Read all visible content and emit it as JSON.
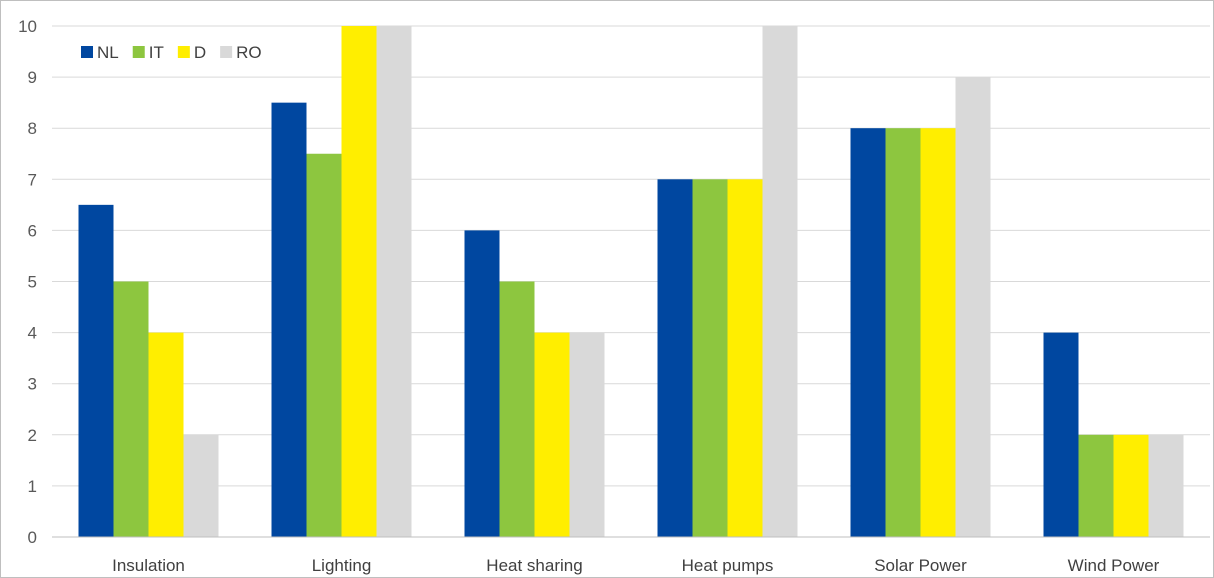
{
  "chart_data": {
    "type": "bar",
    "title": "",
    "xlabel": "",
    "ylabel": "",
    "ylim": [
      0,
      10
    ],
    "yticks": [
      0,
      1,
      2,
      3,
      4,
      5,
      6,
      7,
      8,
      9,
      10
    ],
    "grid": true,
    "legend_position": "top-left",
    "categories": [
      "Insulation",
      "Lighting",
      "Heat sharing",
      "Heat pumps",
      "Solar Power",
      "Wind Power"
    ],
    "series": [
      {
        "name": "NL",
        "color": "#0047a0",
        "values": [
          6.5,
          8.5,
          6,
          7,
          8,
          4
        ]
      },
      {
        "name": "IT",
        "color": "#8dc63f",
        "values": [
          5,
          7.5,
          5,
          7,
          8,
          2
        ]
      },
      {
        "name": "D",
        "color": "#ffee00",
        "values": [
          4,
          10,
          4,
          7,
          8,
          2
        ]
      },
      {
        "name": "RO",
        "color": "#d9d9d9",
        "values": [
          2,
          10,
          4,
          10,
          9,
          2
        ]
      }
    ]
  }
}
